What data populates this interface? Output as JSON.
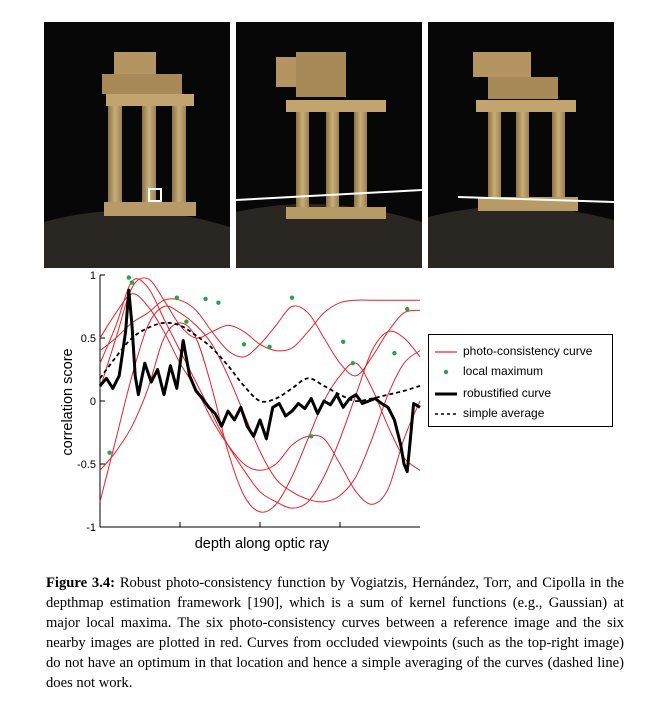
{
  "photos": [
    {
      "name": "reference-image",
      "highlight": "square"
    },
    {
      "name": "nearby-image-occluded",
      "highlight": "line"
    },
    {
      "name": "nearby-image-top-right",
      "highlight": "line"
    }
  ],
  "chart_data": {
    "type": "line",
    "xlabel": "depth along optic ray",
    "ylabel": "correlation score",
    "ylim": [
      -1,
      1
    ],
    "xlim": [
      0,
      100
    ],
    "y_ticks": [
      "1",
      "0.5",
      "0",
      "-0.5",
      "-1"
    ],
    "y_tick_values": [
      1,
      0.5,
      0,
      -0.5,
      -1
    ],
    "colors": {
      "photo": "#e8242a",
      "maximum": "#2aa34a",
      "robust": "#000000",
      "average": "#000000"
    },
    "legend": [
      {
        "key": "photo",
        "label": "photo-consistency curve"
      },
      {
        "key": "maximum",
        "label": "local maximum"
      },
      {
        "key": "robust",
        "label": "robustified curve"
      },
      {
        "key": "average",
        "label": "simple average"
      }
    ],
    "photo_curves": [
      {
        "x": [
          0,
          5,
          10,
          15,
          20,
          25,
          30,
          35,
          40,
          45,
          50,
          55,
          60,
          65,
          70,
          75,
          80,
          85,
          90,
          95,
          100
        ],
        "y": [
          -0.8,
          -0.3,
          0.2,
          0.6,
          0.75,
          0.7,
          0.6,
          0.45,
          0.2,
          -0.1,
          -0.4,
          -0.62,
          -0.72,
          -0.78,
          -0.8,
          -0.75,
          -0.6,
          -0.3,
          0.05,
          0.3,
          0.4
        ]
      },
      {
        "x": [
          0,
          5,
          10,
          15,
          20,
          25,
          30,
          35,
          40,
          45,
          50,
          55,
          60,
          65,
          70,
          75,
          80,
          85,
          90,
          95,
          100
        ],
        "y": [
          0.1,
          0.5,
          0.9,
          0.97,
          0.8,
          0.6,
          0.5,
          0.55,
          0.6,
          0.55,
          0.45,
          0.4,
          0.42,
          0.55,
          0.7,
          0.78,
          0.8,
          0.8,
          0.8,
          0.8,
          0.8
        ]
      },
      {
        "x": [
          0,
          5,
          10,
          15,
          20,
          25,
          30,
          35,
          40,
          45,
          50,
          55,
          60,
          65,
          70,
          75,
          80,
          85,
          90,
          95,
          100
        ],
        "y": [
          0.3,
          0.6,
          0.95,
          0.9,
          0.65,
          0.4,
          0.15,
          -0.1,
          -0.35,
          -0.55,
          -0.72,
          -0.8,
          -0.85,
          -0.8,
          -0.6,
          -0.3,
          0.05,
          0.4,
          0.55,
          0.5,
          0.35
        ]
      },
      {
        "x": [
          0,
          5,
          10,
          15,
          20,
          25,
          30,
          35,
          40,
          45,
          50,
          55,
          60,
          65,
          70,
          75,
          80,
          85,
          90,
          95,
          100
        ],
        "y": [
          -0.55,
          -0.4,
          -0.2,
          0.1,
          0.5,
          0.62,
          0.5,
          0.1,
          -0.4,
          -0.75,
          -0.88,
          -0.82,
          -0.6,
          -0.3,
          0.0,
          0.2,
          0.3,
          0.1,
          -0.2,
          -0.45,
          -0.55
        ]
      },
      {
        "x": [
          0,
          5,
          10,
          15,
          20,
          25,
          30,
          35,
          40,
          45,
          50,
          55,
          60,
          65,
          70,
          75,
          80,
          85,
          90,
          95,
          100
        ],
        "y": [
          0.4,
          0.5,
          0.62,
          0.7,
          0.8,
          0.8,
          0.72,
          0.55,
          0.4,
          0.35,
          0.45,
          0.6,
          0.75,
          0.7,
          0.5,
          0.3,
          0.2,
          0.35,
          0.55,
          0.7,
          0.72
        ]
      },
      {
        "x": [
          0,
          5,
          10,
          15,
          20,
          25,
          30,
          35,
          40,
          45,
          50,
          55,
          60,
          65,
          70,
          75,
          80,
          85,
          90,
          95,
          100
        ],
        "y": [
          0.5,
          0.7,
          0.85,
          0.75,
          0.55,
          0.3,
          0.1,
          -0.15,
          -0.35,
          -0.5,
          -0.55,
          -0.5,
          -0.35,
          -0.28,
          -0.3,
          -0.5,
          -0.72,
          -0.82,
          -0.7,
          -0.3,
          0.0
        ]
      }
    ],
    "local_maxima": [
      {
        "x": 3,
        "y": -0.41
      },
      {
        "x": 9,
        "y": 0.98
      },
      {
        "x": 10,
        "y": 0.94
      },
      {
        "x": 24,
        "y": 0.82
      },
      {
        "x": 27,
        "y": 0.63
      },
      {
        "x": 33,
        "y": 0.81
      },
      {
        "x": 37,
        "y": 0.78
      },
      {
        "x": 45,
        "y": 0.45
      },
      {
        "x": 53,
        "y": 0.43
      },
      {
        "x": 60,
        "y": 0.82
      },
      {
        "x": 66,
        "y": -0.28
      },
      {
        "x": 76,
        "y": 0.47
      },
      {
        "x": 79,
        "y": 0.3
      },
      {
        "x": 92,
        "y": 0.38
      },
      {
        "x": 96,
        "y": 0.73
      }
    ],
    "robust_curve": {
      "x": [
        0,
        2,
        4,
        6,
        8,
        9,
        10,
        11,
        12,
        14,
        16,
        18,
        20,
        22,
        24,
        26,
        28,
        30,
        32,
        34,
        36,
        38,
        40,
        42,
        44,
        46,
        48,
        50,
        52,
        54,
        56,
        58,
        60,
        62,
        64,
        66,
        68,
        70,
        72,
        74,
        76,
        78,
        80,
        82,
        84,
        86,
        88,
        90,
        92,
        94,
        95,
        96,
        97,
        98,
        100
      ],
      "y": [
        0.12,
        0.18,
        0.1,
        0.2,
        0.55,
        0.88,
        0.6,
        0.2,
        0.05,
        0.3,
        0.15,
        0.25,
        0.05,
        0.28,
        0.1,
        0.48,
        0.2,
        0.08,
        0.02,
        -0.05,
        -0.1,
        -0.2,
        -0.08,
        -0.15,
        -0.05,
        -0.2,
        -0.28,
        -0.15,
        -0.3,
        -0.05,
        -0.02,
        -0.12,
        -0.08,
        -0.02,
        -0.06,
        0.02,
        -0.1,
        0.0,
        -0.03,
        0.05,
        -0.05,
        0.02,
        0.05,
        -0.02,
        0.0,
        0.02,
        -0.02,
        -0.05,
        -0.15,
        -0.35,
        -0.5,
        -0.56,
        -0.3,
        -0.02,
        -0.05
      ]
    },
    "average_curve": {
      "x": [
        0,
        5,
        10,
        15,
        20,
        25,
        30,
        35,
        40,
        45,
        50,
        55,
        60,
        65,
        70,
        75,
        80,
        85,
        90,
        95,
        100
      ],
      "y": [
        0.18,
        0.35,
        0.5,
        0.58,
        0.62,
        0.6,
        0.52,
        0.42,
        0.28,
        0.12,
        0.0,
        0.02,
        0.1,
        0.18,
        0.12,
        0.05,
        0.0,
        0.02,
        0.05,
        0.08,
        0.12
      ]
    }
  },
  "caption": {
    "label": "Figure 3.4:",
    "text": "Robust photo-consistency function by Vogiatzis, Hernández, Torr, and Cipolla in the depthmap estimation framework [190], which is a sum of kernel functions (e.g., Gaussian) at major local maxima. The six photo-consistency curves between a reference image and the six nearby images are plotted in red. Curves from occluded viewpoints (such as the top-right image) do not have an optimum in that location and hence a simple averaging of the curves (dashed line) does not work."
  }
}
